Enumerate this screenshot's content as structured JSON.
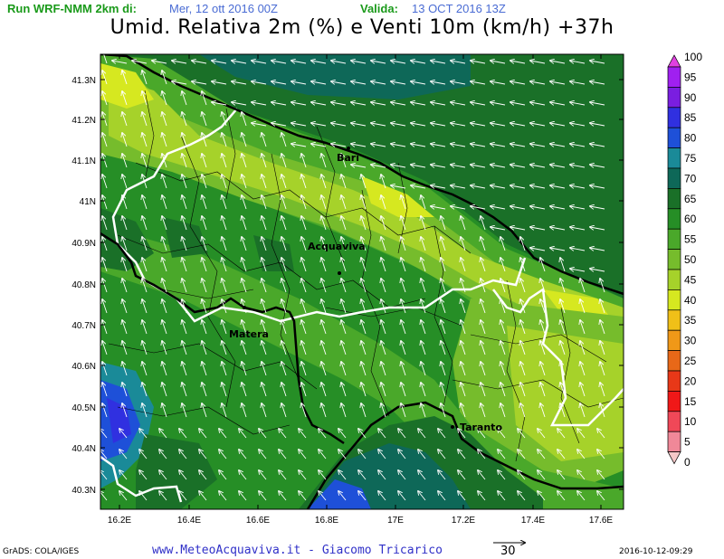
{
  "header": {
    "run_label": "Run WRF-NMM 2km di:",
    "run_value": "Mer, 12 ott 2016 00Z",
    "valid_label": "Valida:",
    "valid_value": "13 OCT 2016 13Z"
  },
  "title": "Umid. Relativa 2m (%) e Venti 10m (km/h) +37h",
  "axes": {
    "lat_ticks": [
      "41.3N",
      "41.2N",
      "41.1N",
      "41N",
      "40.9N",
      "40.8N",
      "40.7N",
      "40.6N",
      "40.5N",
      "40.4N",
      "40.3N"
    ],
    "lon_ticks": [
      "16.2E",
      "16.4E",
      "16.6E",
      "16.8E",
      "17E",
      "17.2E",
      "17.4E",
      "17.6E"
    ]
  },
  "cities": [
    {
      "name": "Bari"
    },
    {
      "name": "Acquaviva"
    },
    {
      "name": "Matera"
    },
    {
      "name": "Taranto"
    }
  ],
  "colorbar": {
    "levels": [
      "100",
      "95",
      "90",
      "85",
      "80",
      "75",
      "70",
      "65",
      "60",
      "55",
      "50",
      "45",
      "40",
      "35",
      "30",
      "25",
      "20",
      "15",
      "10",
      "5",
      "0"
    ],
    "colors": [
      "#e040e0",
      "#a020f0",
      "#7a1ee0",
      "#3030e0",
      "#1e50d8",
      "#1a8a98",
      "#0e6858",
      "#1a7028",
      "#268e26",
      "#4aa82a",
      "#76bc2c",
      "#a6d22a",
      "#d6e820",
      "#f0c018",
      "#f09818",
      "#e86818",
      "#e83818",
      "#f01818",
      "#f04858",
      "#f08898",
      "#f6c8c8"
    ]
  },
  "footer": {
    "grads": "GrADS: COLA/IGES",
    "credit": "www.MeteoAcquaviva.it - Giacomo Tricarico",
    "vector_ref": "30",
    "timestamp": "2016-10-12-09:29"
  }
}
